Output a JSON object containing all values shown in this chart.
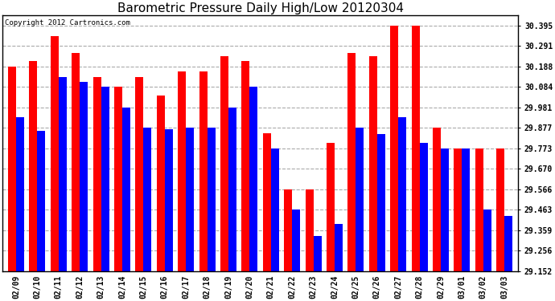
{
  "title": "Barometric Pressure Daily High/Low 20120304",
  "copyright_text": "Copyright 2012 Cartronics.com",
  "dates": [
    "02/09",
    "02/10",
    "02/11",
    "02/12",
    "02/13",
    "02/14",
    "02/15",
    "02/16",
    "02/17",
    "02/18",
    "02/19",
    "02/20",
    "02/21",
    "02/22",
    "02/23",
    "02/24",
    "02/25",
    "02/26",
    "02/27",
    "02/28",
    "02/29",
    "03/01",
    "03/02",
    "03/03"
  ],
  "highs": [
    30.188,
    30.214,
    30.34,
    30.254,
    30.136,
    30.084,
    30.136,
    30.04,
    30.162,
    30.162,
    30.24,
    30.214,
    29.85,
    29.566,
    29.566,
    29.8,
    30.254,
    30.24,
    30.395,
    30.395,
    29.877,
    29.773,
    29.773,
    29.773
  ],
  "lows": [
    29.93,
    29.864,
    30.136,
    30.11,
    30.084,
    29.981,
    29.877,
    29.87,
    29.877,
    29.877,
    29.981,
    30.084,
    29.773,
    29.463,
    29.33,
    29.39,
    29.877,
    29.847,
    29.93,
    29.8,
    29.773,
    29.773,
    29.463,
    29.43
  ],
  "bar_width": 0.38,
  "high_color": "#ff0000",
  "low_color": "#0000ff",
  "bg_color": "#ffffff",
  "grid_color": "#aaaaaa",
  "ymin": 29.152,
  "ylim_max": 30.447,
  "yticks": [
    30.395,
    30.291,
    30.188,
    30.084,
    29.981,
    29.877,
    29.773,
    29.67,
    29.566,
    29.463,
    29.359,
    29.256,
    29.152
  ],
  "title_fontsize": 11,
  "copyright_fontsize": 6.5,
  "tick_fontsize": 7
}
